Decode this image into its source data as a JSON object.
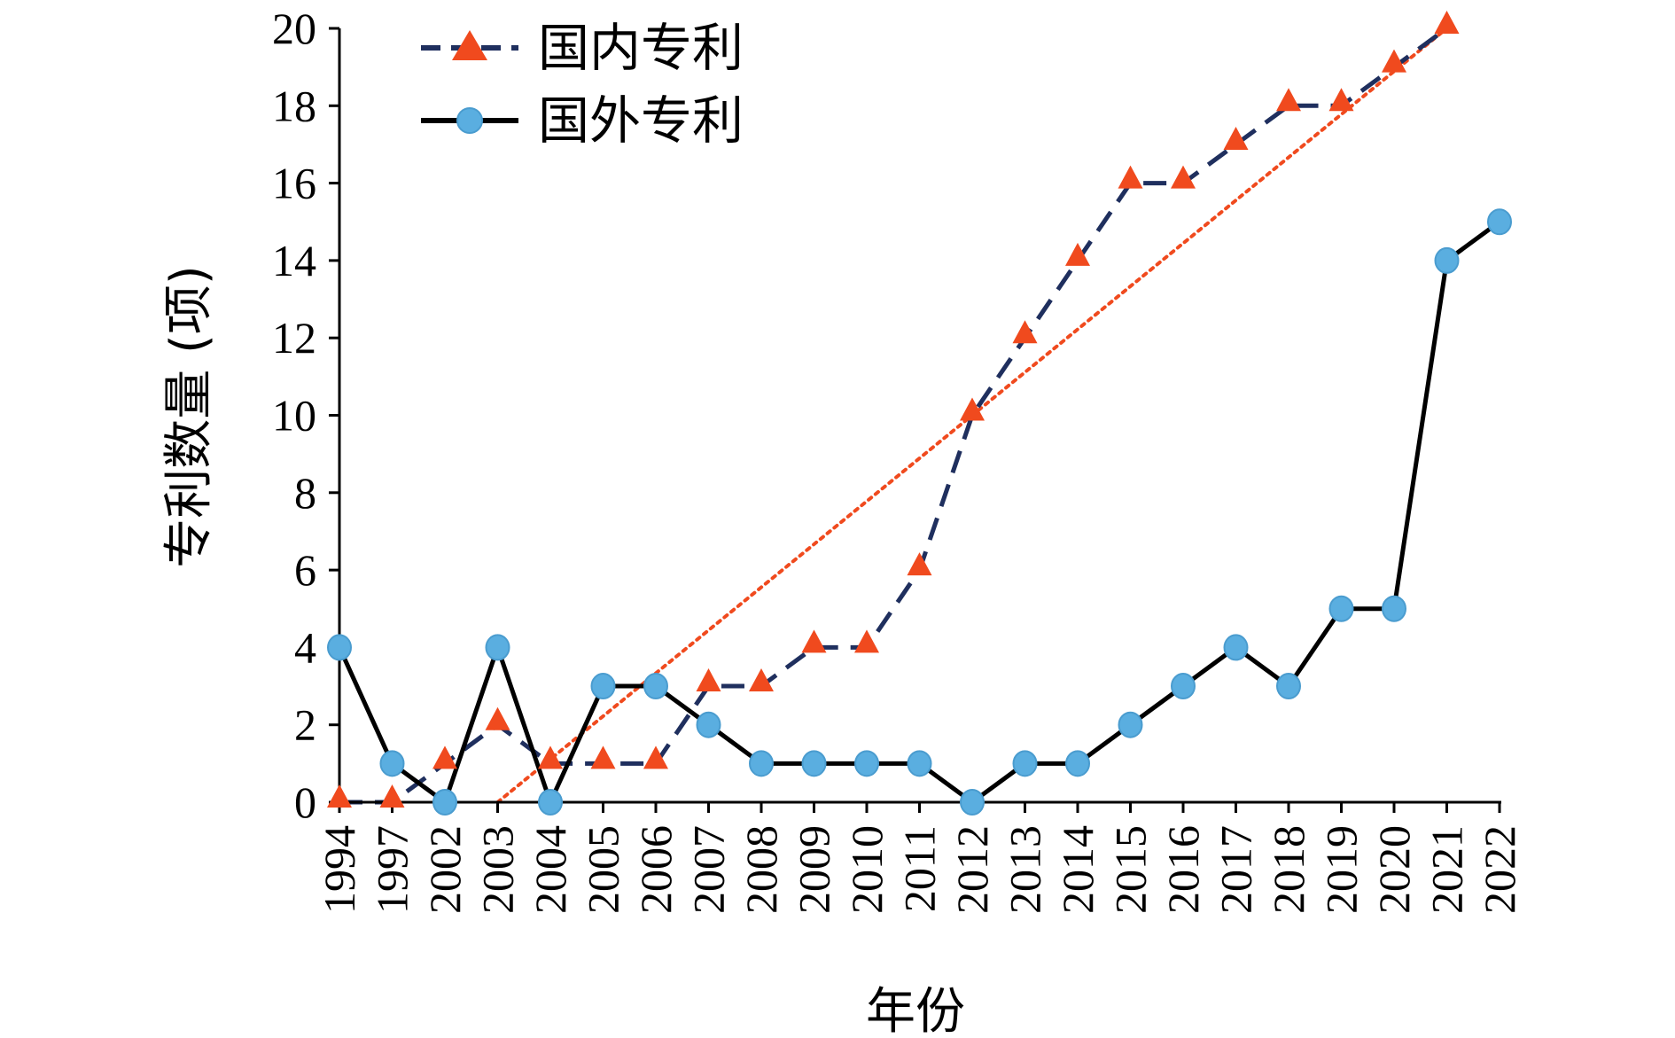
{
  "chart_data": {
    "type": "line",
    "title": "",
    "xlabel": "年份",
    "ylabel": "专利数量 (项)",
    "categories": [
      "1994",
      "1997",
      "2002",
      "2003",
      "2004",
      "2005",
      "2006",
      "2007",
      "2008",
      "2009",
      "2010",
      "2011",
      "2012",
      "2013",
      "2014",
      "2015",
      "2016",
      "2017",
      "2018",
      "2019",
      "2020",
      "2021",
      "2022"
    ],
    "ylim": [
      0,
      20
    ],
    "yticks": [
      0,
      2,
      4,
      6,
      8,
      10,
      12,
      14,
      16,
      18,
      20
    ],
    "legend_position": "top-left",
    "grid": false,
    "series": [
      {
        "name": "国内专利",
        "line_color": "#1f2f5e",
        "marker_color": "#f04a1e",
        "line_style": "dashed",
        "marker": "triangle",
        "values": [
          0,
          0,
          1,
          2,
          1,
          1,
          1,
          3,
          3,
          4,
          4,
          6,
          10,
          12,
          14,
          16,
          16,
          17,
          18,
          18,
          19,
          20,
          null
        ]
      },
      {
        "name": "国外专利",
        "line_color": "#000000",
        "marker_color": "#5aaee0",
        "line_style": "solid",
        "marker": "circle",
        "values": [
          4,
          1,
          0,
          4,
          0,
          3,
          3,
          2,
          1,
          1,
          1,
          1,
          0,
          1,
          1,
          2,
          3,
          4,
          3,
          5,
          5,
          14,
          15
        ]
      }
    ],
    "trendline": {
      "of_series": "国内专利",
      "color": "#f04a1e",
      "style": "dotted",
      "start": {
        "x": "2003",
        "y": 0
      },
      "end": {
        "x": "2021",
        "y": 20
      }
    }
  }
}
